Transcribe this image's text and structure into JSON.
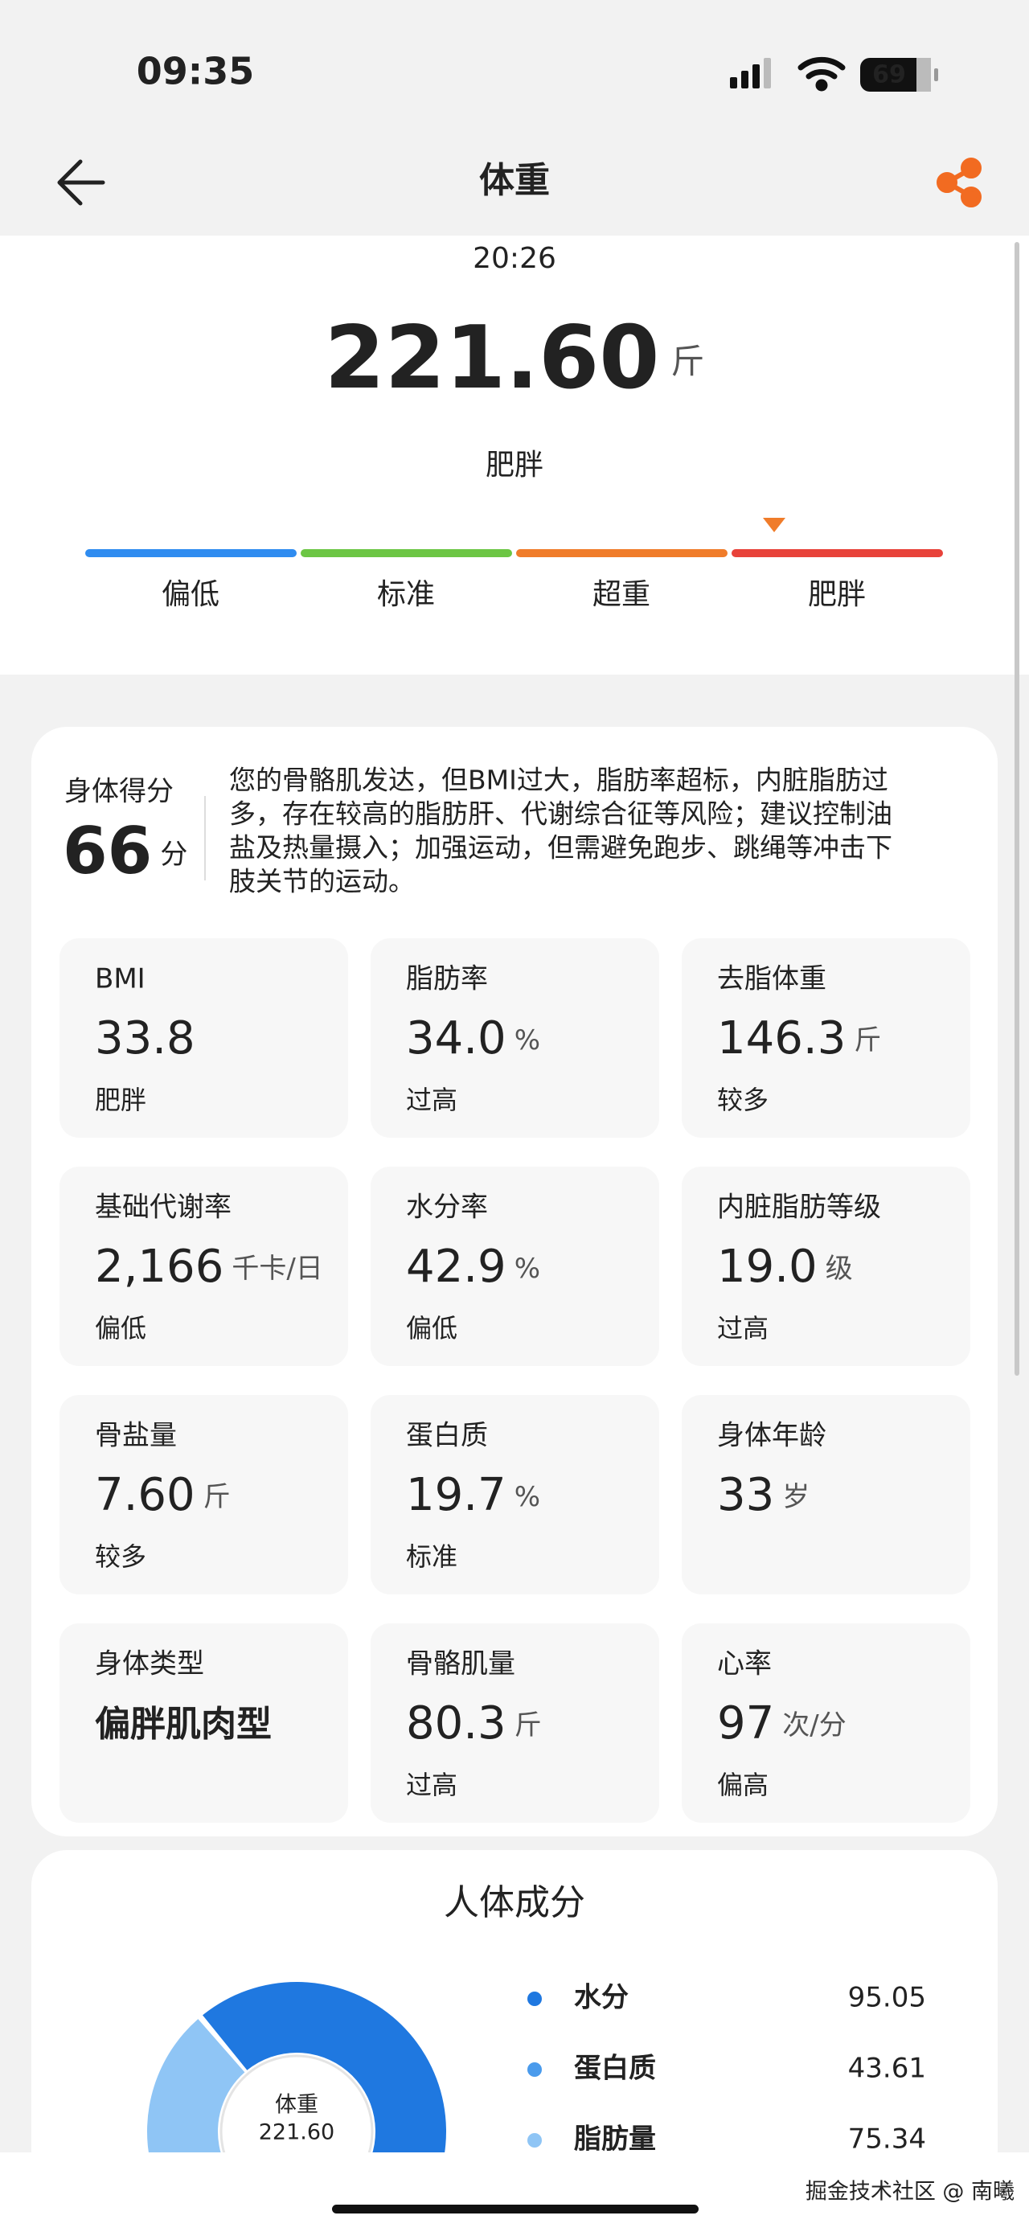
{
  "status_bar": {
    "time": "09:35",
    "battery": "69"
  },
  "header": {
    "title": "体重"
  },
  "summary": {
    "time": "20:26",
    "weight": "221.60",
    "unit": "斤",
    "status": "肥胖",
    "levels": [
      {
        "label": "偏低",
        "color": "#2f8cf0"
      },
      {
        "label": "标准",
        "color": "#6cc644"
      },
      {
        "label": "超重",
        "color": "#f07c2a"
      },
      {
        "label": "肥胖",
        "color": "#e8423a"
      }
    ]
  },
  "score": {
    "label": "身体得分",
    "value": "66",
    "unit": "分",
    "description": [
      "您的骨骼肌发达，但BMI过大，脂肪率超标，内脏脂肪过",
      "多，存在较高的脂肪肝、代谢综合征等风险；建议控制油",
      "盐及热量摄入；加强运动，但需避免跑步、跳绳等冲击下",
      "肢关节的运动。"
    ]
  },
  "metrics": [
    {
      "label": "BMI",
      "value": "33.8",
      "status": "肥胖",
      "status_color": "#e8423a"
    },
    {
      "label": "脂肪率",
      "value": "34.0",
      "unit": "%",
      "status": "过高",
      "status_color": "#e8423a"
    },
    {
      "label": "去脂体重",
      "value": "146.3",
      "unit": "斤",
      "status": "较多",
      "status_color": "#f07c2a"
    },
    {
      "label": "基础代谢率",
      "value": "2,166",
      "unit": "千卡/日",
      "status": "偏低",
      "status_color": "#2f8cf0"
    },
    {
      "label": "水分率",
      "value": "42.9",
      "unit": "%",
      "status": "偏低",
      "status_color": "#2f8cf0"
    },
    {
      "label": "内脏脂肪等级",
      "value": "19.0",
      "unit": "级",
      "status": "过高",
      "status_color": "#e8423a"
    },
    {
      "label": "骨盐量",
      "value": "7.60",
      "unit": "斤",
      "status": "较多",
      "status_color": "#f07c2a"
    },
    {
      "label": "蛋白质",
      "value": "19.7",
      "unit": "%",
      "status": "标准",
      "status_color": "#6cc644"
    },
    {
      "label": "身体年龄",
      "value": "33",
      "unit": "岁"
    },
    {
      "label": "身体类型",
      "value": "偏胖肌肉型"
    },
    {
      "label": "骨骼肌量",
      "value": "80.3",
      "unit": "斤",
      "status": "过高",
      "status_color": "#f07c2a"
    },
    {
      "label": "心率",
      "value": "97",
      "unit": "次/分",
      "status": "偏高",
      "status_color": "#f07c2a"
    }
  ],
  "composition": {
    "title": "人体成分",
    "center_label": "体重",
    "center_value": "221.60",
    "items": [
      {
        "name": "水分",
        "value": 95.05,
        "color": "#1f78e0"
      },
      {
        "name": "蛋白质",
        "value": 43.61,
        "color": "#4a9bec"
      },
      {
        "name": "脂肪量",
        "value": 75.34,
        "color": "#8fc5f5"
      }
    ]
  },
  "watermark": "掘金技术社区 @ 南曦"
}
